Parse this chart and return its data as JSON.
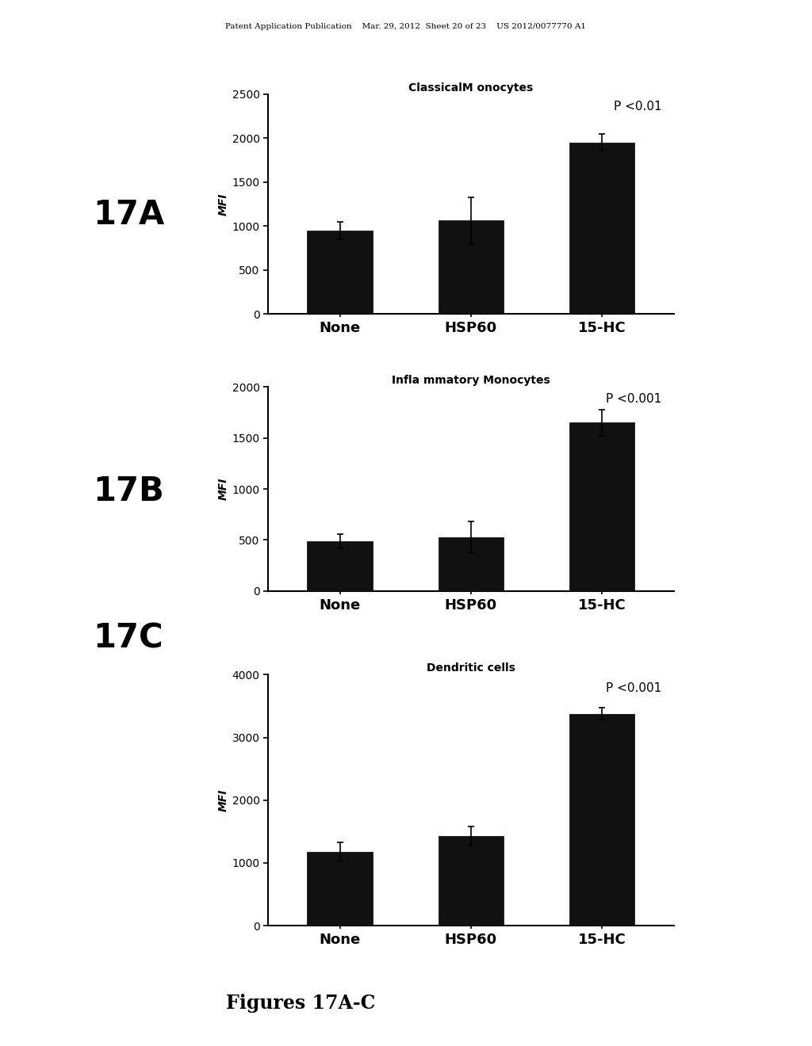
{
  "background_color": "#ffffff",
  "header_text": "Patent Application Publication    Mar. 29, 2012  Sheet 20 of 23    US 2012/0077770 A1",
  "footer_text": "Figures 17A-C",
  "panels": [
    {
      "label": "17A",
      "title": "ClassicalM onocytes",
      "categories": [
        "None",
        "HSP60",
        "15-HC"
      ],
      "values": [
        950,
        1060,
        1950
      ],
      "errors": [
        100,
        270,
        95
      ],
      "ylabel": "MFI",
      "ylim": [
        0,
        2500
      ],
      "yticks": [
        0,
        500,
        1000,
        1500,
        2000,
        2500
      ],
      "ptext": "P <0.01"
    },
    {
      "label": "17B",
      "title": "Infla mmatory Monocytes",
      "categories": [
        "None",
        "HSP60",
        "15-HC"
      ],
      "values": [
        490,
        530,
        1650
      ],
      "errors": [
        70,
        150,
        125
      ],
      "ylabel": "MFI",
      "ylim": [
        0,
        2000
      ],
      "yticks": [
        0,
        500,
        1000,
        1500,
        2000
      ],
      "ptext": "P <0.001"
    },
    {
      "label": "17C",
      "title": "Dendritic cells",
      "categories": [
        "None",
        "HSP60",
        "15-HC"
      ],
      "values": [
        1180,
        1430,
        3380
      ],
      "errors": [
        150,
        150,
        95
      ],
      "ylabel": "MFI",
      "ylim": [
        0,
        4000
      ],
      "yticks": [
        0,
        1000,
        2000,
        3000,
        4000
      ],
      "ptext": "P <0.001"
    }
  ],
  "bar_color": "#111111",
  "bar_width": 0.5,
  "bar_edgecolor": "#000000",
  "label_fontsize": 30,
  "title_fontsize": 10,
  "tick_fontsize": 10,
  "ylabel_fontsize": 10,
  "ptext_fontsize": 11,
  "xlabel_fontsize": 13
}
